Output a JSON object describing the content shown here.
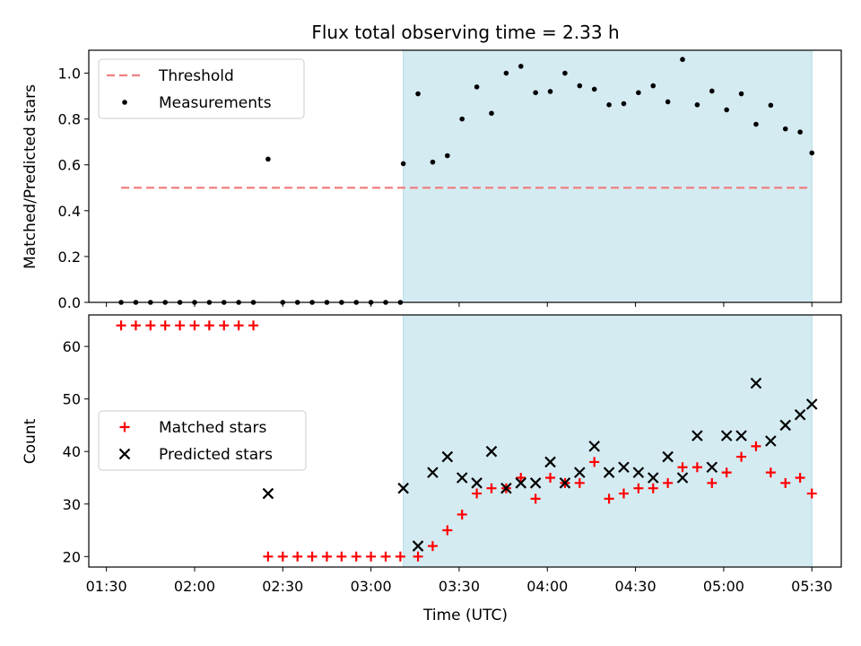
{
  "chart_data": [
    {
      "type": "scatter",
      "title": "Flux total observing time = 2.33 h",
      "xlabel": "",
      "ylabel": "Matched/Predicted stars",
      "ylim": [
        0,
        1.1
      ],
      "yticks": [
        "0.0",
        "0.2",
        "0.4",
        "0.6",
        "0.8",
        "1.0"
      ],
      "xlim": [
        "01:24",
        "05:40"
      ],
      "shaded_region": {
        "start": "03:11",
        "end": "05:30",
        "color": "#d4ebf2"
      },
      "legend_position": "upper-left",
      "series": [
        {
          "name": "Threshold",
          "style": "dashed-line",
          "color": "#f08080",
          "x": [
            "01:35",
            "05:30"
          ],
          "y": [
            0.5,
            0.5
          ]
        },
        {
          "name": "Measurements",
          "style": "dot",
          "color": "#000000",
          "x": [
            "01:35",
            "01:40",
            "01:45",
            "01:50",
            "01:55",
            "02:00",
            "02:05",
            "02:10",
            "02:15",
            "02:20",
            "02:25",
            "02:30",
            "02:35",
            "02:40",
            "02:45",
            "02:50",
            "02:55",
            "03:00",
            "03:05",
            "03:10",
            "03:11",
            "03:16",
            "03:21",
            "03:26",
            "03:31",
            "03:36",
            "03:41",
            "03:46",
            "03:51",
            "03:56",
            "04:01",
            "04:06",
            "04:11",
            "04:16",
            "04:21",
            "04:26",
            "04:31",
            "04:36",
            "04:41",
            "04:46",
            "04:51",
            "04:56",
            "05:01",
            "05:06",
            "05:11",
            "05:16",
            "05:21",
            "05:26",
            "05:30"
          ],
          "y": [
            0,
            0,
            0,
            0,
            0,
            0,
            0,
            0,
            0,
            0,
            0.625,
            0,
            0,
            0,
            0,
            0,
            0,
            0,
            0,
            0,
            0.605,
            0.91,
            0.612,
            0.64,
            0.8,
            0.94,
            0.825,
            1.0,
            1.03,
            0.915,
            0.92,
            1.0,
            0.945,
            0.93,
            0.862,
            0.867,
            0.915,
            0.945,
            0.875,
            1.06,
            0.862,
            0.922,
            0.84,
            0.91,
            0.777,
            0.86,
            0.757,
            0.743,
            0.652
          ]
        }
      ]
    },
    {
      "type": "scatter",
      "title": "",
      "xlabel": "Time (UTC)",
      "ylabel": "Count",
      "ylim": [
        18,
        66
      ],
      "yticks": [
        "20",
        "30",
        "40",
        "50",
        "60"
      ],
      "xlim": [
        "01:24",
        "05:40"
      ],
      "xticks": [
        "01:30",
        "02:00",
        "02:30",
        "03:00",
        "03:30",
        "04:00",
        "04:30",
        "05:00",
        "05:30"
      ],
      "shaded_region": {
        "start": "03:11",
        "end": "05:30",
        "color": "#d4ebf2"
      },
      "legend_position": "center-left",
      "series": [
        {
          "name": "Matched stars",
          "style": "plus",
          "color": "#ff0000",
          "x": [
            "01:35",
            "01:40",
            "01:45",
            "01:50",
            "01:55",
            "02:00",
            "02:05",
            "02:10",
            "02:15",
            "02:20",
            "02:25",
            "02:30",
            "02:35",
            "02:40",
            "02:45",
            "02:50",
            "02:55",
            "03:00",
            "03:05",
            "03:10",
            "03:16",
            "03:21",
            "03:26",
            "03:31",
            "03:36",
            "03:41",
            "03:46",
            "03:51",
            "03:56",
            "04:01",
            "04:06",
            "04:11",
            "04:16",
            "04:21",
            "04:26",
            "04:31",
            "04:36",
            "04:41",
            "04:46",
            "04:51",
            "04:56",
            "05:01",
            "05:06",
            "05:11",
            "05:16",
            "05:21",
            "05:26",
            "05:30"
          ],
          "y": [
            64,
            64,
            64,
            64,
            64,
            64,
            64,
            64,
            64,
            64,
            20,
            20,
            20,
            20,
            20,
            20,
            20,
            20,
            20,
            20,
            20,
            22,
            25,
            28,
            32,
            33,
            33,
            35,
            31,
            35,
            34,
            34,
            38,
            31,
            32,
            33,
            33,
            34,
            37,
            37,
            34,
            36,
            39,
            41,
            36,
            34,
            35,
            32
          ]
        },
        {
          "name": "Predicted stars",
          "style": "x",
          "color": "#000000",
          "x": [
            "02:25",
            "03:11",
            "03:16",
            "03:21",
            "03:26",
            "03:31",
            "03:36",
            "03:41",
            "03:46",
            "03:51",
            "03:56",
            "04:01",
            "04:06",
            "04:11",
            "04:16",
            "04:21",
            "04:26",
            "04:31",
            "04:36",
            "04:41",
            "04:46",
            "04:51",
            "04:56",
            "05:01",
            "05:06",
            "05:11",
            "05:16",
            "05:21",
            "05:26",
            "05:30"
          ],
          "y": [
            32,
            33,
            22,
            36,
            39,
            35,
            34,
            40,
            33,
            34,
            34,
            38,
            34,
            36,
            41,
            36,
            37,
            36,
            35,
            39,
            35,
            43,
            37,
            43,
            43,
            53,
            42,
            45,
            47,
            49
          ]
        }
      ]
    }
  ]
}
